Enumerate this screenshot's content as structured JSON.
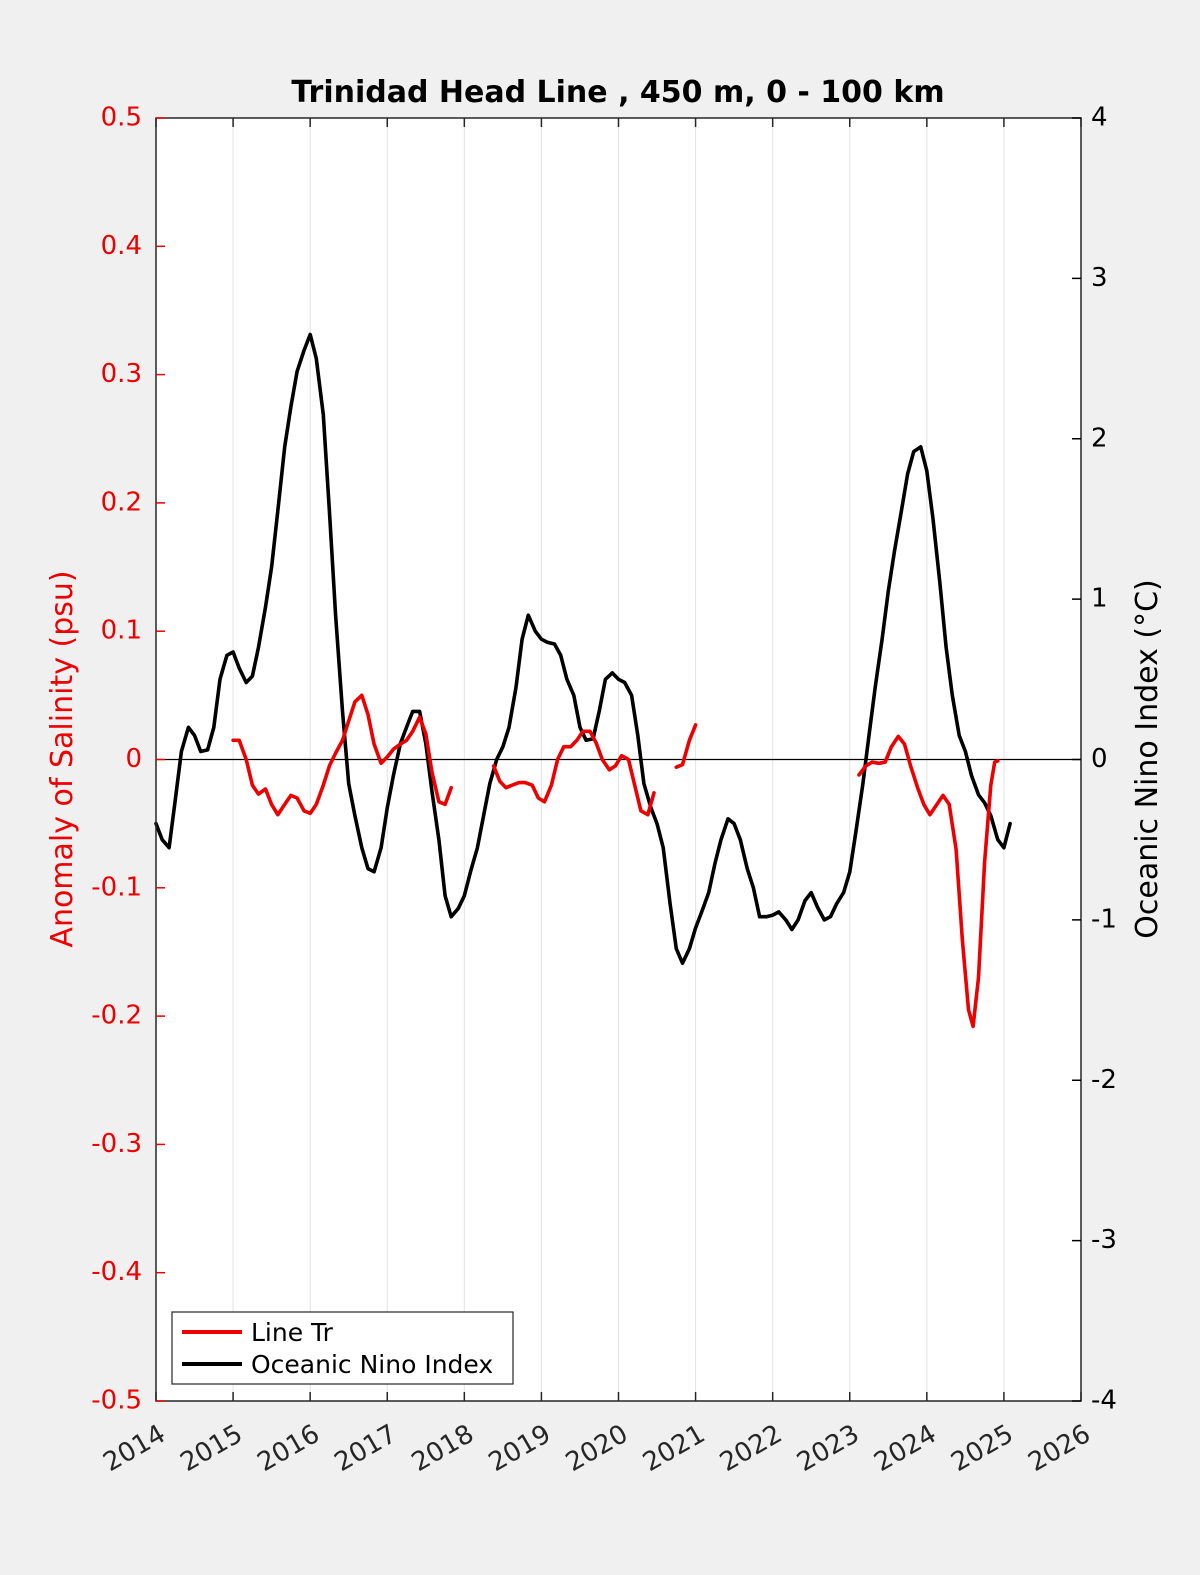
{
  "chart_data": {
    "type": "line",
    "title": "Trinidad Head Line , 450 m, 0 - 100 km",
    "xlabel": "",
    "ylabel_left": "Anomaly of Salinity (psu)",
    "ylabel_right": "Oceanic Nino Index (°C)",
    "xlim": [
      2014,
      2026
    ],
    "ylim_left": [
      -0.5,
      0.5
    ],
    "ylim_right": [
      -4,
      4
    ],
    "x_ticks": [
      "2014",
      "2015",
      "2016",
      "2017",
      "2018",
      "2019",
      "2020",
      "2021",
      "2022",
      "2023",
      "2024",
      "2025",
      "2026"
    ],
    "y_left_ticks": [
      "0.5",
      "0.4",
      "0.3",
      "0.2",
      "0.1",
      "0",
      "-0.1",
      "-0.2",
      "-0.3",
      "-0.4",
      "-0.5"
    ],
    "y_right_ticks": [
      "4",
      "3",
      "2",
      "1",
      "0",
      "-1",
      "-2",
      "-3",
      "-4"
    ],
    "vertical_grid": true,
    "zero_line": true,
    "legend_position": "bottom-left",
    "colors": {
      "salinity": "#ee0000",
      "oni": "#000000",
      "left_axis": "#ee0000",
      "right_axis": "#000000"
    },
    "series": [
      {
        "name": "Line Tr",
        "axis": "left",
        "segments": [
          [
            [
              2015.0,
              0.015
            ],
            [
              2015.08,
              0.015
            ],
            [
              2015.17,
              0.0
            ],
            [
              2015.25,
              -0.02
            ],
            [
              2015.33,
              -0.027
            ],
            [
              2015.42,
              -0.023
            ],
            [
              2015.5,
              -0.035
            ],
            [
              2015.58,
              -0.043
            ],
            [
              2015.67,
              -0.035
            ],
            [
              2015.75,
              -0.028
            ],
            [
              2015.83,
              -0.03
            ],
            [
              2015.92,
              -0.04
            ],
            [
              2016.0,
              -0.042
            ],
            [
              2016.08,
              -0.035
            ],
            [
              2016.17,
              -0.02
            ],
            [
              2016.25,
              -0.005
            ],
            [
              2016.33,
              0.005
            ],
            [
              2016.42,
              0.015
            ],
            [
              2016.5,
              0.03
            ],
            [
              2016.58,
              0.045
            ],
            [
              2016.67,
              0.05
            ],
            [
              2016.75,
              0.035
            ],
            [
              2016.83,
              0.012
            ],
            [
              2016.92,
              -0.003
            ],
            [
              2017.0,
              0.002
            ],
            [
              2017.08,
              0.008
            ],
            [
              2017.17,
              0.012
            ],
            [
              2017.25,
              0.015
            ],
            [
              2017.33,
              0.022
            ],
            [
              2017.42,
              0.033
            ],
            [
              2017.5,
              0.02
            ],
            [
              2017.58,
              -0.01
            ],
            [
              2017.67,
              -0.033
            ],
            [
              2017.75,
              -0.035
            ],
            [
              2017.83,
              -0.022
            ]
          ],
          [
            [
              2018.38,
              -0.005
            ],
            [
              2018.46,
              -0.017
            ],
            [
              2018.54,
              -0.022
            ],
            [
              2018.62,
              -0.02
            ],
            [
              2018.71,
              -0.018
            ],
            [
              2018.79,
              -0.018
            ],
            [
              2018.88,
              -0.02
            ],
            [
              2018.96,
              -0.03
            ],
            [
              2019.04,
              -0.033
            ],
            [
              2019.13,
              -0.02
            ],
            [
              2019.21,
              0.0
            ],
            [
              2019.29,
              0.01
            ],
            [
              2019.38,
              0.01
            ],
            [
              2019.46,
              0.015
            ],
            [
              2019.54,
              0.022
            ],
            [
              2019.63,
              0.022
            ],
            [
              2019.71,
              0.013
            ],
            [
              2019.79,
              0.0
            ],
            [
              2019.88,
              -0.008
            ],
            [
              2019.96,
              -0.005
            ],
            [
              2020.04,
              0.003
            ],
            [
              2020.13,
              0.0
            ],
            [
              2020.21,
              -0.02
            ],
            [
              2020.29,
              -0.04
            ],
            [
              2020.38,
              -0.043
            ],
            [
              2020.46,
              -0.026
            ]
          ],
          [
            [
              2020.75,
              -0.006
            ],
            [
              2020.83,
              -0.004
            ],
            [
              2020.92,
              0.015
            ],
            [
              2021.0,
              0.027
            ]
          ],
          [
            [
              2023.12,
              -0.012
            ],
            [
              2023.21,
              -0.005
            ],
            [
              2023.29,
              -0.002
            ],
            [
              2023.38,
              -0.003
            ],
            [
              2023.46,
              -0.002
            ],
            [
              2023.54,
              0.01
            ],
            [
              2023.63,
              0.018
            ],
            [
              2023.71,
              0.012
            ],
            [
              2023.79,
              -0.005
            ],
            [
              2023.88,
              -0.022
            ],
            [
              2023.96,
              -0.035
            ],
            [
              2024.04,
              -0.043
            ],
            [
              2024.13,
              -0.035
            ],
            [
              2024.21,
              -0.028
            ],
            [
              2024.29,
              -0.035
            ],
            [
              2024.38,
              -0.07
            ],
            [
              2024.46,
              -0.14
            ],
            [
              2024.54,
              -0.195
            ],
            [
              2024.6,
              -0.208
            ],
            [
              2024.67,
              -0.17
            ],
            [
              2024.75,
              -0.08
            ],
            [
              2024.83,
              -0.02
            ],
            [
              2024.88,
              -0.002
            ],
            [
              2024.92,
              -0.001
            ]
          ]
        ]
      },
      {
        "name": "Oceanic Nino Index",
        "axis": "right",
        "segments": [
          [
            [
              2014.0,
              -0.4
            ],
            [
              2014.08,
              -0.5
            ],
            [
              2014.17,
              -0.55
            ],
            [
              2014.25,
              -0.25
            ],
            [
              2014.33,
              0.05
            ],
            [
              2014.42,
              0.2
            ],
            [
              2014.5,
              0.15
            ],
            [
              2014.58,
              0.05
            ],
            [
              2014.67,
              0.06
            ],
            [
              2014.75,
              0.2
            ],
            [
              2014.83,
              0.5
            ],
            [
              2014.92,
              0.65
            ],
            [
              2015.0,
              0.67
            ],
            [
              2015.08,
              0.57
            ],
            [
              2015.17,
              0.48
            ],
            [
              2015.25,
              0.52
            ],
            [
              2015.33,
              0.7
            ],
            [
              2015.42,
              0.95
            ],
            [
              2015.5,
              1.2
            ],
            [
              2015.58,
              1.55
            ],
            [
              2015.67,
              1.95
            ],
            [
              2015.75,
              2.2
            ],
            [
              2015.83,
              2.42
            ],
            [
              2015.92,
              2.55
            ],
            [
              2016.0,
              2.65
            ],
            [
              2016.08,
              2.5
            ],
            [
              2016.17,
              2.15
            ],
            [
              2016.25,
              1.55
            ],
            [
              2016.33,
              0.9
            ],
            [
              2016.42,
              0.3
            ],
            [
              2016.5,
              -0.15
            ],
            [
              2016.58,
              -0.35
            ],
            [
              2016.67,
              -0.55
            ],
            [
              2016.75,
              -0.68
            ],
            [
              2016.83,
              -0.7
            ],
            [
              2016.92,
              -0.55
            ],
            [
              2017.0,
              -0.3
            ],
            [
              2017.08,
              -0.1
            ],
            [
              2017.17,
              0.1
            ],
            [
              2017.25,
              0.2
            ],
            [
              2017.33,
              0.3
            ],
            [
              2017.42,
              0.3
            ],
            [
              2017.5,
              0.1
            ],
            [
              2017.58,
              -0.2
            ],
            [
              2017.67,
              -0.5
            ],
            [
              2017.75,
              -0.85
            ],
            [
              2017.83,
              -0.98
            ],
            [
              2017.92,
              -0.93
            ],
            [
              2018.0,
              -0.85
            ],
            [
              2018.08,
              -0.7
            ],
            [
              2018.17,
              -0.55
            ],
            [
              2018.25,
              -0.35
            ],
            [
              2018.33,
              -0.15
            ],
            [
              2018.42,
              0.0
            ],
            [
              2018.5,
              0.08
            ],
            [
              2018.58,
              0.2
            ],
            [
              2018.67,
              0.45
            ],
            [
              2018.75,
              0.75
            ],
            [
              2018.83,
              0.9
            ],
            [
              2018.92,
              0.8
            ],
            [
              2019.0,
              0.75
            ],
            [
              2019.08,
              0.73
            ],
            [
              2019.17,
              0.72
            ],
            [
              2019.25,
              0.65
            ],
            [
              2019.33,
              0.5
            ],
            [
              2019.42,
              0.4
            ],
            [
              2019.5,
              0.2
            ],
            [
              2019.58,
              0.12
            ],
            [
              2019.67,
              0.13
            ],
            [
              2019.75,
              0.3
            ],
            [
              2019.83,
              0.5
            ],
            [
              2019.92,
              0.54
            ],
            [
              2020.0,
              0.5
            ],
            [
              2020.08,
              0.48
            ],
            [
              2020.17,
              0.4
            ],
            [
              2020.25,
              0.15
            ],
            [
              2020.33,
              -0.15
            ],
            [
              2020.42,
              -0.3
            ],
            [
              2020.5,
              -0.4
            ],
            [
              2020.58,
              -0.55
            ],
            [
              2020.67,
              -0.9
            ],
            [
              2020.75,
              -1.18
            ],
            [
              2020.83,
              -1.27
            ],
            [
              2020.92,
              -1.18
            ],
            [
              2021.0,
              -1.05
            ],
            [
              2021.08,
              -0.95
            ],
            [
              2021.17,
              -0.83
            ],
            [
              2021.25,
              -0.65
            ],
            [
              2021.33,
              -0.5
            ],
            [
              2021.42,
              -0.37
            ],
            [
              2021.5,
              -0.4
            ],
            [
              2021.58,
              -0.5
            ],
            [
              2021.67,
              -0.68
            ],
            [
              2021.75,
              -0.8
            ],
            [
              2021.83,
              -0.98
            ],
            [
              2021.92,
              -0.98
            ],
            [
              2022.0,
              -0.97
            ],
            [
              2022.08,
              -0.95
            ],
            [
              2022.17,
              -1.0
            ],
            [
              2022.25,
              -1.06
            ],
            [
              2022.33,
              -1.0
            ],
            [
              2022.42,
              -0.88
            ],
            [
              2022.5,
              -0.83
            ],
            [
              2022.58,
              -0.92
            ],
            [
              2022.67,
              -1.0
            ],
            [
              2022.75,
              -0.98
            ],
            [
              2022.83,
              -0.9
            ],
            [
              2022.92,
              -0.83
            ],
            [
              2023.0,
              -0.7
            ],
            [
              2023.08,
              -0.45
            ],
            [
              2023.17,
              -0.15
            ],
            [
              2023.25,
              0.15
            ],
            [
              2023.33,
              0.45
            ],
            [
              2023.42,
              0.75
            ],
            [
              2023.5,
              1.05
            ],
            [
              2023.58,
              1.3
            ],
            [
              2023.67,
              1.55
            ],
            [
              2023.75,
              1.78
            ],
            [
              2023.83,
              1.92
            ],
            [
              2023.92,
              1.95
            ],
            [
              2024.0,
              1.8
            ],
            [
              2024.08,
              1.5
            ],
            [
              2024.17,
              1.1
            ],
            [
              2024.25,
              0.7
            ],
            [
              2024.33,
              0.4
            ],
            [
              2024.42,
              0.15
            ],
            [
              2024.5,
              0.05
            ],
            [
              2024.58,
              -0.1
            ],
            [
              2024.67,
              -0.22
            ],
            [
              2024.75,
              -0.27
            ],
            [
              2024.83,
              -0.35
            ],
            [
              2024.92,
              -0.5
            ],
            [
              2025.0,
              -0.55
            ],
            [
              2025.08,
              -0.4
            ]
          ]
        ]
      }
    ]
  }
}
